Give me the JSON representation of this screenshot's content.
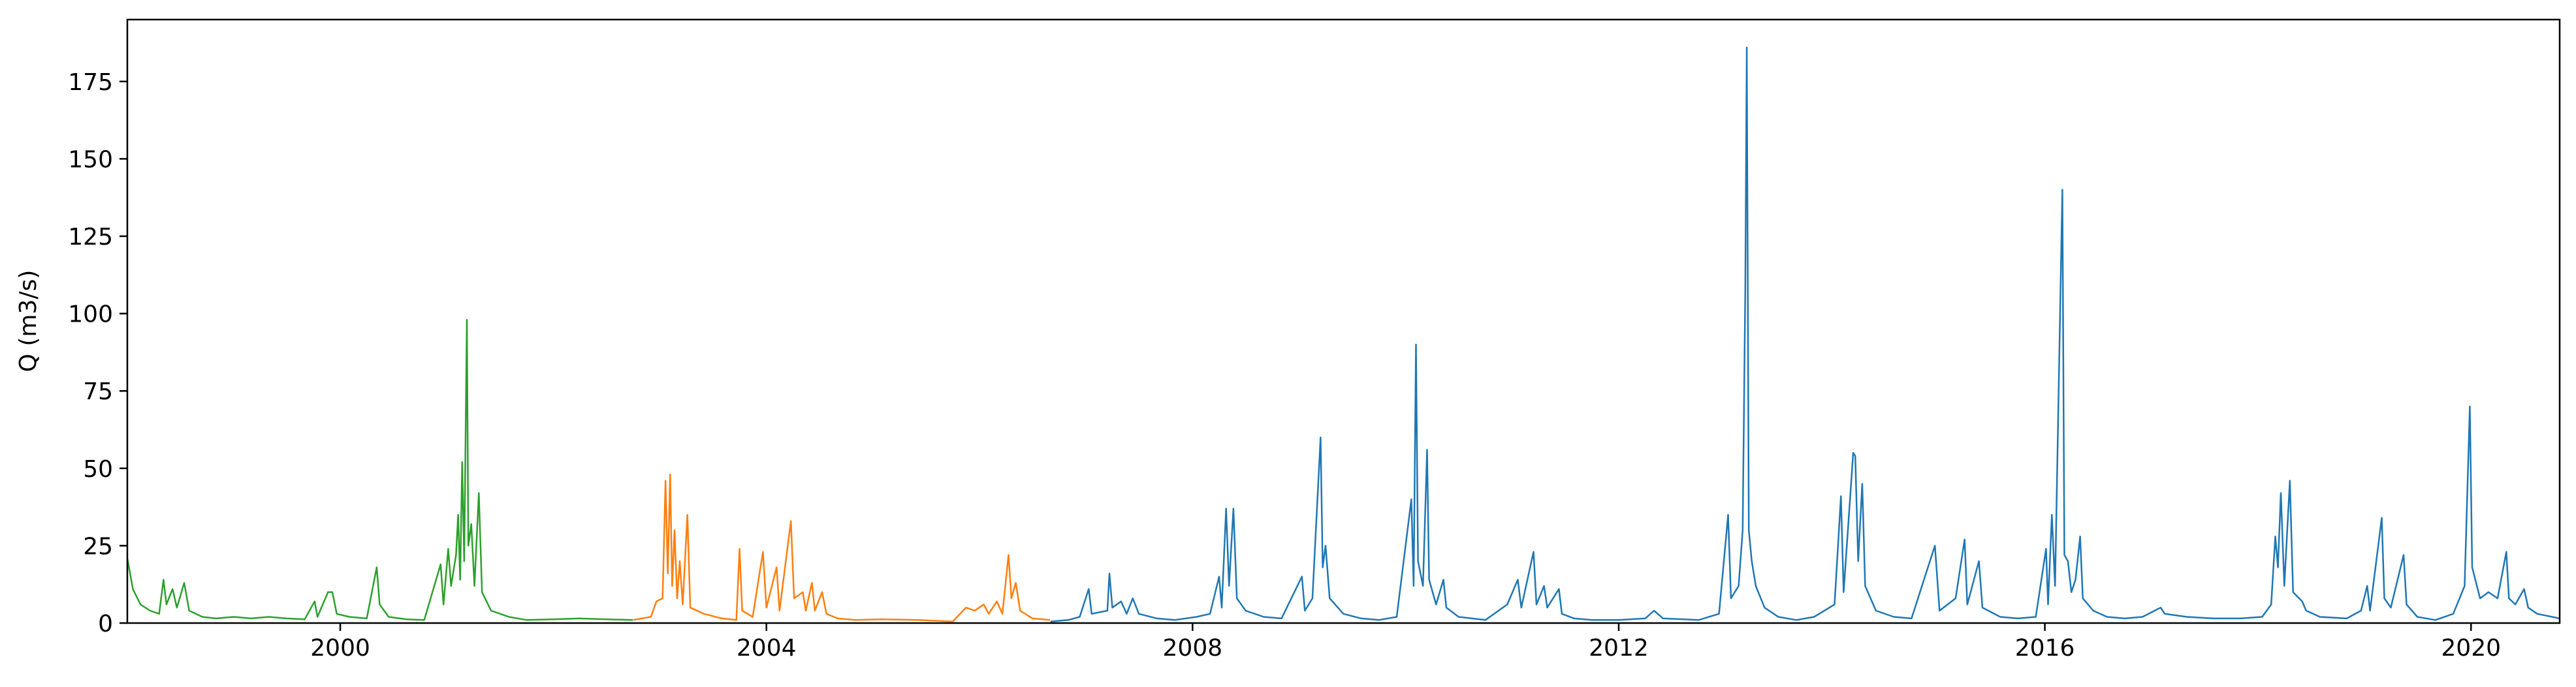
{
  "chart_data": {
    "type": "line",
    "title": "",
    "xlabel": "",
    "ylabel": "Q (m3/s)",
    "xlim": [
      "1998-01-01",
      "2020-10-31"
    ],
    "ylim": [
      0,
      195
    ],
    "xticks": [
      "2000",
      "2004",
      "2008",
      "2012",
      "2016",
      "2020"
    ],
    "yticks": [
      0,
      25,
      50,
      75,
      100,
      125,
      150,
      175
    ],
    "grid": false,
    "legend": "none",
    "series": [
      {
        "color": "#2ca02c",
        "points": [
          [
            "1998-01-01",
            21
          ],
          [
            "1998-01-20",
            11
          ],
          [
            "1998-02-15",
            6
          ],
          [
            "1998-03-20",
            4
          ],
          [
            "1998-04-20",
            3
          ],
          [
            "1998-05-05",
            14
          ],
          [
            "1998-05-15",
            6
          ],
          [
            "1998-06-05",
            11
          ],
          [
            "1998-06-20",
            5
          ],
          [
            "1998-07-15",
            13
          ],
          [
            "1998-08-01",
            4
          ],
          [
            "1998-09-15",
            2
          ],
          [
            "1998-11-01",
            1.5
          ],
          [
            "1999-01-01",
            2
          ],
          [
            "1999-03-01",
            1.5
          ],
          [
            "1999-05-01",
            2
          ],
          [
            "1999-07-01",
            1.5
          ],
          [
            "1999-09-01",
            1.2
          ],
          [
            "1999-10-05",
            7
          ],
          [
            "1999-10-15",
            2
          ],
          [
            "1999-11-20",
            10
          ],
          [
            "1999-12-05",
            10
          ],
          [
            "1999-12-20",
            3
          ],
          [
            "2000-02-01",
            2
          ],
          [
            "2000-04-01",
            1.5
          ],
          [
            "2000-05-05",
            18
          ],
          [
            "2000-05-15",
            6
          ],
          [
            "2000-06-15",
            2
          ],
          [
            "2000-08-15",
            1.2
          ],
          [
            "2000-10-15",
            1
          ],
          [
            "2000-12-10",
            19
          ],
          [
            "2000-12-20",
            6
          ],
          [
            "2001-01-05",
            24
          ],
          [
            "2001-01-15",
            12
          ],
          [
            "2001-02-01",
            22
          ],
          [
            "2001-02-08",
            35
          ],
          [
            "2001-02-15",
            14
          ],
          [
            "2001-02-22",
            52
          ],
          [
            "2001-03-01",
            20
          ],
          [
            "2001-03-10",
            98
          ],
          [
            "2001-03-15",
            25
          ],
          [
            "2001-03-25",
            32
          ],
          [
            "2001-04-05",
            12
          ],
          [
            "2001-04-20",
            42
          ],
          [
            "2001-05-01",
            10
          ],
          [
            "2001-06-01",
            4
          ],
          [
            "2001-08-01",
            2
          ],
          [
            "2001-10-01",
            1
          ],
          [
            "2002-01-01",
            1.2
          ],
          [
            "2002-04-01",
            1.5
          ],
          [
            "2002-07-01",
            1.2
          ],
          [
            "2002-09-30",
            1
          ]
        ]
      },
      {
        "color": "#ff7f0e",
        "points": [
          [
            "2002-10-01",
            1
          ],
          [
            "2002-12-01",
            2
          ],
          [
            "2002-12-20",
            7
          ],
          [
            "2003-01-10",
            8
          ],
          [
            "2003-01-20",
            46
          ],
          [
            "2003-01-28",
            16
          ],
          [
            "2003-02-05",
            48
          ],
          [
            "2003-02-12",
            12
          ],
          [
            "2003-02-20",
            30
          ],
          [
            "2003-03-01",
            8
          ],
          [
            "2003-03-10",
            20
          ],
          [
            "2003-03-20",
            6
          ],
          [
            "2003-04-05",
            35
          ],
          [
            "2003-04-15",
            5
          ],
          [
            "2003-06-01",
            3
          ],
          [
            "2003-08-01",
            1.5
          ],
          [
            "2003-09-20",
            1
          ],
          [
            "2003-10-01",
            24
          ],
          [
            "2003-10-10",
            4
          ],
          [
            "2003-11-15",
            2
          ],
          [
            "2003-12-20",
            23
          ],
          [
            "2004-01-01",
            5
          ],
          [
            "2004-02-05",
            18
          ],
          [
            "2004-02-15",
            4
          ],
          [
            "2004-03-25",
            33
          ],
          [
            "2004-04-05",
            8
          ],
          [
            "2004-05-05",
            10
          ],
          [
            "2004-05-15",
            4
          ],
          [
            "2004-06-05",
            13
          ],
          [
            "2004-06-15",
            4
          ],
          [
            "2004-07-10",
            10
          ],
          [
            "2004-07-25",
            3
          ],
          [
            "2004-09-01",
            1.5
          ],
          [
            "2004-11-01",
            1
          ],
          [
            "2005-02-01",
            1.2
          ],
          [
            "2005-06-01",
            1
          ],
          [
            "2005-10-01",
            0.5
          ],
          [
            "2005-11-15",
            5
          ],
          [
            "2005-12-15",
            4
          ],
          [
            "2006-01-15",
            6
          ],
          [
            "2006-02-01",
            3
          ],
          [
            "2006-03-01",
            7
          ],
          [
            "2006-03-20",
            3
          ],
          [
            "2006-04-10",
            22
          ],
          [
            "2006-04-20",
            8
          ],
          [
            "2006-05-05",
            13
          ],
          [
            "2006-05-20",
            4
          ],
          [
            "2006-07-01",
            1.5
          ],
          [
            "2006-08-30",
            1
          ]
        ]
      },
      {
        "color": "#1f77b4",
        "points": [
          [
            "2006-09-01",
            0.5
          ],
          [
            "2006-11-01",
            1
          ],
          [
            "2006-12-10",
            2
          ],
          [
            "2007-01-10",
            11
          ],
          [
            "2007-01-20",
            3
          ],
          [
            "2007-03-15",
            4
          ],
          [
            "2007-03-22",
            16
          ],
          [
            "2007-04-01",
            5
          ],
          [
            "2007-05-01",
            7
          ],
          [
            "2007-05-20",
            3
          ],
          [
            "2007-06-10",
            8
          ],
          [
            "2007-07-01",
            3
          ],
          [
            "2007-09-01",
            1.5
          ],
          [
            "2007-11-01",
            1
          ],
          [
            "2008-01-15",
            2
          ],
          [
            "2008-03-01",
            3
          ],
          [
            "2008-04-01",
            15
          ],
          [
            "2008-04-10",
            5
          ],
          [
            "2008-04-25",
            37
          ],
          [
            "2008-05-05",
            12
          ],
          [
            "2008-05-20",
            37
          ],
          [
            "2008-06-01",
            8
          ],
          [
            "2008-07-01",
            4
          ],
          [
            "2008-09-01",
            2
          ],
          [
            "2008-11-01",
            1.5
          ],
          [
            "2009-01-10",
            15
          ],
          [
            "2009-01-20",
            4
          ],
          [
            "2009-02-15",
            8
          ],
          [
            "2009-03-15",
            60
          ],
          [
            "2009-03-22",
            18
          ],
          [
            "2009-04-01",
            25
          ],
          [
            "2009-04-15",
            8
          ],
          [
            "2009-06-01",
            3
          ],
          [
            "2009-08-01",
            1.5
          ],
          [
            "2009-10-01",
            1
          ],
          [
            "2009-12-01",
            2
          ],
          [
            "2010-01-20",
            40
          ],
          [
            "2010-01-28",
            12
          ],
          [
            "2010-02-05",
            90
          ],
          [
            "2010-02-12",
            20
          ],
          [
            "2010-03-01",
            12
          ],
          [
            "2010-03-15",
            56
          ],
          [
            "2010-03-22",
            14
          ],
          [
            "2010-04-15",
            6
          ],
          [
            "2010-05-10",
            14
          ],
          [
            "2010-05-20",
            5
          ],
          [
            "2010-07-01",
            2
          ],
          [
            "2010-10-01",
            1
          ],
          [
            "2010-12-15",
            6
          ],
          [
            "2011-01-20",
            14
          ],
          [
            "2011-02-01",
            5
          ],
          [
            "2011-03-15",
            23
          ],
          [
            "2011-03-25",
            6
          ],
          [
            "2011-04-20",
            12
          ],
          [
            "2011-05-01",
            5
          ],
          [
            "2011-06-10",
            11
          ],
          [
            "2011-06-20",
            3
          ],
          [
            "2011-08-01",
            1.5
          ],
          [
            "2011-10-01",
            1
          ],
          [
            "2012-01-01",
            1
          ],
          [
            "2012-04-01",
            1.5
          ],
          [
            "2012-05-01",
            4
          ],
          [
            "2012-06-01",
            1.5
          ],
          [
            "2012-10-01",
            1
          ],
          [
            "2012-12-10",
            3
          ],
          [
            "2013-01-10",
            35
          ],
          [
            "2013-01-20",
            8
          ],
          [
            "2013-02-15",
            12
          ],
          [
            "2013-03-01",
            30
          ],
          [
            "2013-03-10",
            108
          ],
          [
            "2013-03-15",
            186
          ],
          [
            "2013-03-22",
            30
          ],
          [
            "2013-04-01",
            20
          ],
          [
            "2013-04-15",
            12
          ],
          [
            "2013-05-15",
            5
          ],
          [
            "2013-07-01",
            2
          ],
          [
            "2013-09-01",
            1
          ],
          [
            "2013-11-01",
            2
          ],
          [
            "2014-01-10",
            6
          ],
          [
            "2014-02-01",
            41
          ],
          [
            "2014-02-10",
            10
          ],
          [
            "2014-03-15",
            55
          ],
          [
            "2014-03-22",
            54
          ],
          [
            "2014-04-01",
            20
          ],
          [
            "2014-04-15",
            45
          ],
          [
            "2014-04-25",
            12
          ],
          [
            "2014-06-01",
            4
          ],
          [
            "2014-08-01",
            2
          ],
          [
            "2014-10-01",
            1.5
          ],
          [
            "2014-12-20",
            25
          ],
          [
            "2015-01-05",
            4
          ],
          [
            "2015-03-01",
            8
          ],
          [
            "2015-04-01",
            27
          ],
          [
            "2015-04-10",
            6
          ],
          [
            "2015-05-20",
            20
          ],
          [
            "2015-06-01",
            5
          ],
          [
            "2015-08-01",
            2
          ],
          [
            "2015-10-01",
            1.5
          ],
          [
            "2015-12-01",
            2
          ],
          [
            "2016-01-05",
            24
          ],
          [
            "2016-01-12",
            6
          ],
          [
            "2016-01-25",
            35
          ],
          [
            "2016-02-05",
            12
          ],
          [
            "2016-03-01",
            140
          ],
          [
            "2016-03-08",
            22
          ],
          [
            "2016-03-20",
            20
          ],
          [
            "2016-04-01",
            10
          ],
          [
            "2016-04-15",
            14
          ],
          [
            "2016-05-01",
            28
          ],
          [
            "2016-05-10",
            8
          ],
          [
            "2016-06-15",
            4
          ],
          [
            "2016-08-01",
            2
          ],
          [
            "2016-10-01",
            1.5
          ],
          [
            "2016-12-01",
            2
          ],
          [
            "2017-02-01",
            5
          ],
          [
            "2017-02-15",
            3
          ],
          [
            "2017-05-01",
            2
          ],
          [
            "2017-08-01",
            1.5
          ],
          [
            "2017-11-01",
            1.5
          ],
          [
            "2018-01-15",
            2
          ],
          [
            "2018-02-15",
            6
          ],
          [
            "2018-03-01",
            28
          ],
          [
            "2018-03-10",
            18
          ],
          [
            "2018-03-20",
            42
          ],
          [
            "2018-04-01",
            12
          ],
          [
            "2018-04-20",
            46
          ],
          [
            "2018-05-01",
            10
          ],
          [
            "2018-06-01",
            7
          ],
          [
            "2018-06-15",
            4
          ],
          [
            "2018-08-01",
            2
          ],
          [
            "2018-11-01",
            1.5
          ],
          [
            "2018-12-20",
            4
          ],
          [
            "2019-01-10",
            12
          ],
          [
            "2019-01-20",
            4
          ],
          [
            "2019-03-01",
            34
          ],
          [
            "2019-03-10",
            8
          ],
          [
            "2019-04-01",
            5
          ],
          [
            "2019-05-15",
            22
          ],
          [
            "2019-05-25",
            6
          ],
          [
            "2019-07-01",
            2
          ],
          [
            "2019-09-01",
            1
          ],
          [
            "2019-11-01",
            3
          ],
          [
            "2019-12-10",
            12
          ],
          [
            "2019-12-28",
            70
          ],
          [
            "2020-01-05",
            18
          ],
          [
            "2020-02-01",
            8
          ],
          [
            "2020-03-01",
            10
          ],
          [
            "2020-04-01",
            8
          ],
          [
            "2020-05-01",
            23
          ],
          [
            "2020-05-10",
            8
          ],
          [
            "2020-06-01",
            6
          ],
          [
            "2020-07-01",
            11
          ],
          [
            "2020-07-15",
            5
          ],
          [
            "2020-08-15",
            3
          ],
          [
            "2020-10-31",
            1.5
          ]
        ]
      }
    ]
  }
}
